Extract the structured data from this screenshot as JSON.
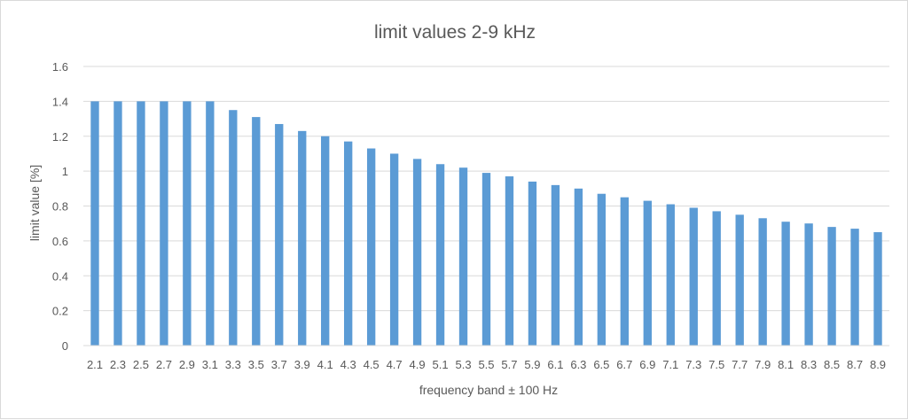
{
  "chart_data": {
    "type": "bar",
    "title": "limit values 2-9 kHz",
    "xlabel": "frequency band ± 100 Hz",
    "ylabel": "limit value [%]",
    "ylim": [
      0,
      1.6
    ],
    "yticks": [
      "0",
      "0.2",
      "0.4",
      "0.6",
      "0.8",
      "1",
      "1.2",
      "1.4",
      "1.6"
    ],
    "grid": true,
    "bar_color": "#5b9bd5",
    "categories": [
      "2.1",
      "2.3",
      "2.5",
      "2.7",
      "2.9",
      "3.1",
      "3.3",
      "3.5",
      "3.7",
      "3.9",
      "4.1",
      "4.3",
      "4.5",
      "4.7",
      "4.9",
      "5.1",
      "5.3",
      "5.5",
      "5.7",
      "5.9",
      "6.1",
      "6.3",
      "6.5",
      "6.7",
      "6.9",
      "7.1",
      "7.3",
      "7.5",
      "7.7",
      "7.9",
      "8.1",
      "8.3",
      "8.5",
      "8.7",
      "8.9"
    ],
    "values": [
      1.4,
      1.4,
      1.4,
      1.4,
      1.4,
      1.4,
      1.35,
      1.31,
      1.27,
      1.23,
      1.2,
      1.17,
      1.13,
      1.1,
      1.07,
      1.04,
      1.02,
      0.99,
      0.97,
      0.94,
      0.92,
      0.9,
      0.87,
      0.85,
      0.83,
      0.81,
      0.79,
      0.77,
      0.75,
      0.73,
      0.71,
      0.7,
      0.68,
      0.67,
      0.65
    ]
  }
}
